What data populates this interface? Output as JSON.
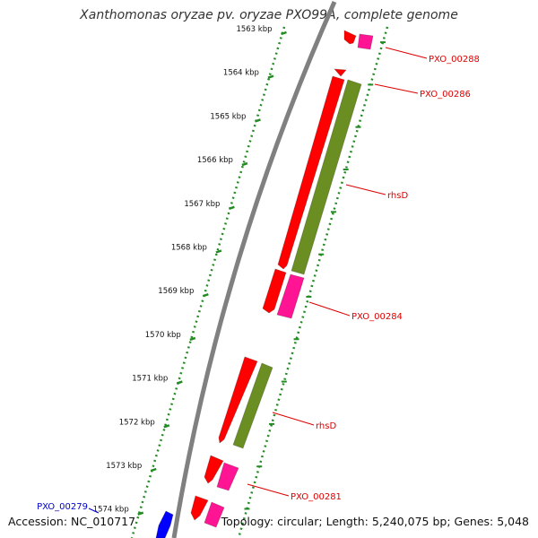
{
  "title": "Xanthomonas oryzae pv. oryzae PXO99A, complete genome",
  "footer": {
    "accession": "Accession: NC_010717",
    "topology": "Topology: circular; Length: 5,240,075 bp; Genes: 5,048"
  },
  "ruler_labels": [
    "1563 kbp",
    "1564 kbp",
    "1565 kbp",
    "1566 kbp",
    "1567 kbp",
    "1568 kbp",
    "1569 kbp",
    "1570 kbp",
    "1571 kbp",
    "1572 kbp",
    "1573 kbp",
    "1574 kbp"
  ],
  "gene_labels": [
    "PXO_00288",
    "PXO_00286",
    "rhsD",
    "PXO_00284",
    "rhsD",
    "PXO_00281",
    "PXO_00279"
  ],
  "colors": {
    "forward_cds": "#ff0000",
    "reverse_cds": "#ff1493",
    "rhs_family": "#6b8e23",
    "other_strand": "#0000ff",
    "backbone": "#808080",
    "tick_mark": "#228b22",
    "gene_label": "#dd0000",
    "highlight_label": "#0000cc"
  }
}
